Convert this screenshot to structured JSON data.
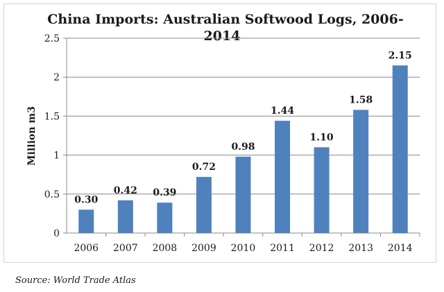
{
  "chart_data": {
    "type": "bar",
    "title_line1": "China Imports: Australian Softwood Logs, 2006-",
    "title_line2": "2014",
    "ylabel": "Million m3",
    "xlabel": "",
    "categories": [
      "2006",
      "2007",
      "2008",
      "2009",
      "2010",
      "2011",
      "2012",
      "2013",
      "2014"
    ],
    "values": [
      0.3,
      0.42,
      0.39,
      0.72,
      0.98,
      1.44,
      1.1,
      1.58,
      2.15
    ],
    "value_labels": [
      "0.30",
      "0.42",
      "0.39",
      "0.72",
      "0.98",
      "1.44",
      "1.10",
      "1.58",
      "2.15"
    ],
    "ylim": [
      0,
      2.5
    ],
    "yticks": [
      "0",
      "0.5",
      "1",
      "1.5",
      "2",
      "2.5"
    ],
    "yticks_values": [
      0,
      0.5,
      1,
      1.5,
      2,
      2.5
    ],
    "grid": true,
    "legend": "none",
    "bar_color": "#4f81bd"
  },
  "source": "Source: World Trade Atlas"
}
